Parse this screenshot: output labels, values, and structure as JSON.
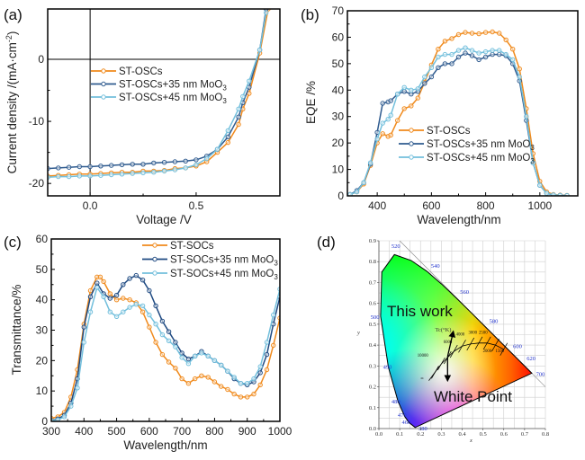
{
  "colors": {
    "orange": "#f08a1c",
    "dark_blue": "#2f5b8f",
    "navy": "#1f4a82",
    "light_blue": "#72bfdc"
  },
  "chart_data": [
    {
      "id": "a",
      "panel_label": "(a)",
      "type": "line",
      "title": "",
      "xlabel": "Voltage /V",
      "ylabel": "Current density /(mA·cm⁻²)",
      "xlim": [
        -0.2,
        0.895
      ],
      "ylim": [
        -22,
        8.1
      ],
      "xticks": [
        0.0,
        0.5
      ],
      "xtick_labels": [
        "0.0",
        "0.5"
      ],
      "yticks": [
        0,
        -10,
        -20
      ],
      "ytick_labels": [
        "0",
        "-10",
        "-20"
      ],
      "zero_lines": true,
      "legend": {
        "position": "center-left"
      },
      "series": [
        {
          "name": "ST-OSCs",
          "name_base": "ST-OSCs",
          "name_sub": "",
          "color_key": "orange",
          "x": [
            -0.2,
            -0.15,
            -0.1,
            -0.05,
            0.0,
            0.05,
            0.1,
            0.15,
            0.2,
            0.25,
            0.3,
            0.35,
            0.4,
            0.45,
            0.5,
            0.55,
            0.6,
            0.65,
            0.7,
            0.72,
            0.75,
            0.8,
            0.84
          ],
          "y": [
            -18.8,
            -18.7,
            -18.6,
            -18.5,
            -18.5,
            -18.4,
            -18.3,
            -18.2,
            -18.2,
            -18.0,
            -18.0,
            -17.9,
            -17.6,
            -17.5,
            -17.2,
            -16.5,
            -15.0,
            -13.4,
            -10.5,
            -8.0,
            -5.5,
            1.0,
            8.1
          ]
        },
        {
          "name": "ST-OSCs+35 nm MoO3",
          "name_base": "ST-OSCs+35 nm MoO",
          "name_sub": "3",
          "color_key": "dark_blue",
          "x": [
            -0.2,
            -0.15,
            -0.1,
            -0.05,
            0.0,
            0.05,
            0.1,
            0.15,
            0.2,
            0.25,
            0.3,
            0.35,
            0.4,
            0.45,
            0.5,
            0.55,
            0.6,
            0.65,
            0.7,
            0.72,
            0.75,
            0.8,
            0.83
          ],
          "y": [
            -17.6,
            -17.5,
            -17.4,
            -17.3,
            -17.3,
            -17.2,
            -17.1,
            -17.0,
            -16.9,
            -16.9,
            -16.7,
            -16.6,
            -16.5,
            -16.4,
            -16.2,
            -15.6,
            -14.5,
            -12.5,
            -9.3,
            -7.0,
            -4.5,
            1.5,
            8.1
          ]
        },
        {
          "name": "ST-OSCs+45 nm MoO3",
          "name_base": "ST-OSCs+45 nm MoO",
          "name_sub": "3",
          "color_key": "light_blue",
          "x": [
            -0.2,
            -0.15,
            -0.1,
            -0.05,
            0.0,
            0.05,
            0.1,
            0.15,
            0.2,
            0.25,
            0.3,
            0.35,
            0.4,
            0.45,
            0.5,
            0.55,
            0.6,
            0.65,
            0.7,
            0.72,
            0.75,
            0.8,
            0.83
          ],
          "y": [
            -19.0,
            -18.9,
            -18.9,
            -18.8,
            -18.8,
            -18.7,
            -18.6,
            -18.5,
            -18.4,
            -18.3,
            -18.2,
            -18.0,
            -17.8,
            -17.5,
            -17.0,
            -16.0,
            -14.5,
            -11.5,
            -8.0,
            -6.0,
            -3.5,
            1.5,
            7.5
          ]
        }
      ]
    },
    {
      "id": "b",
      "panel_label": "(b)",
      "type": "line",
      "title": "",
      "xlabel": "Wavelength/nm",
      "ylabel": "EQE /%",
      "xlim": [
        290,
        1140
      ],
      "ylim": [
        0,
        70
      ],
      "xticks": [
        400,
        600,
        800,
        1000
      ],
      "xtick_labels": [
        "400",
        "600",
        "800",
        "1000"
      ],
      "yticks": [
        0,
        10,
        20,
        30,
        40,
        50,
        60,
        70
      ],
      "ytick_labels": [
        "0",
        "10",
        "20",
        "30",
        "40",
        "50",
        "60",
        "70"
      ],
      "legend": {
        "position": "bottom-center"
      },
      "series": [
        {
          "name": "ST-OSCs",
          "name_base": "ST-OSCs",
          "name_sub": "",
          "color_key": "orange",
          "x": [
            300,
            325,
            350,
            375,
            400,
            420,
            440,
            450,
            475,
            500,
            525,
            550,
            575,
            600,
            625,
            650,
            675,
            700,
            725,
            750,
            775,
            800,
            825,
            850,
            875,
            900,
            925,
            950,
            975,
            1000,
            1025,
            1050,
            1075,
            1100
          ],
          "y": [
            0.5,
            1.5,
            4.5,
            11.5,
            20,
            23.5,
            22.5,
            23,
            28.5,
            33,
            34,
            37,
            43,
            49.5,
            55.5,
            58.5,
            59.5,
            61,
            61.8,
            61.5,
            61.3,
            61.8,
            62,
            61.5,
            59,
            55.5,
            48,
            33,
            16,
            5.5,
            1.5,
            0.5,
            0.3,
            0.2
          ]
        },
        {
          "name": "ST-OSCs+35 nm MoO3",
          "name_base": "ST-OSCs+35 nm MoO",
          "name_sub": "3",
          "color_key": "dark_blue",
          "x": [
            300,
            325,
            350,
            375,
            400,
            420,
            440,
            450,
            475,
            500,
            525,
            550,
            575,
            600,
            625,
            650,
            675,
            700,
            725,
            750,
            775,
            800,
            825,
            850,
            875,
            900,
            925,
            950,
            975,
            1000,
            1025,
            1050,
            1075,
            1100
          ],
          "y": [
            0.5,
            2,
            5,
            12,
            24,
            35,
            35.5,
            36,
            38.5,
            39.5,
            38.5,
            39.5,
            42.5,
            45,
            48.5,
            50,
            50,
            52.5,
            54,
            53,
            51.5,
            52.5,
            53.5,
            53.5,
            53,
            50,
            43.5,
            28.5,
            12.5,
            4,
            1,
            0.3,
            0.2,
            0.1
          ]
        },
        {
          "name": "ST-OSCs+45 nm MoO3",
          "name_base": "ST-OSCs+45 nm MoO",
          "name_sub": "3",
          "color_key": "light_blue",
          "x": [
            300,
            325,
            350,
            375,
            400,
            420,
            440,
            450,
            475,
            500,
            525,
            550,
            575,
            600,
            625,
            650,
            675,
            700,
            725,
            750,
            775,
            800,
            825,
            850,
            875,
            900,
            925,
            950,
            975,
            1000,
            1025,
            1050,
            1075,
            1100
          ],
          "y": [
            0.5,
            1.5,
            5,
            12.5,
            21.5,
            27.5,
            29,
            30.5,
            38.5,
            41,
            40,
            40.5,
            45,
            48.5,
            52.5,
            53.5,
            53.5,
            55,
            56,
            55,
            54,
            54.5,
            55,
            55,
            53.5,
            51.5,
            45,
            30,
            12.5,
            4,
            1,
            0.4,
            0.2,
            0.1
          ]
        }
      ]
    },
    {
      "id": "c",
      "panel_label": "(c)",
      "type": "line",
      "title": "",
      "xlabel": "Wavelength/nm",
      "ylabel": "Transmittance/%",
      "xlim": [
        300,
        1000
      ],
      "ylim": [
        0,
        60
      ],
      "xticks": [
        300,
        400,
        500,
        600,
        700,
        800,
        900,
        1000
      ],
      "xtick_labels": [
        "300",
        "400",
        "500",
        "600",
        "700",
        "800",
        "900",
        "1000"
      ],
      "yticks": [
        0,
        10,
        20,
        30,
        40,
        50,
        60
      ],
      "ytick_labels": [
        "0",
        "10",
        "20",
        "30",
        "40",
        "50",
        "60"
      ],
      "legend": {
        "position": "top-right"
      },
      "series": [
        {
          "name": "ST-SOCs",
          "name_base": "ST-SOCs",
          "name_sub": "",
          "color_key": "orange",
          "x": [
            300,
            320,
            340,
            360,
            380,
            400,
            420,
            440,
            450,
            460,
            480,
            500,
            520,
            540,
            560,
            580,
            600,
            620,
            640,
            660,
            680,
            700,
            720,
            740,
            760,
            780,
            800,
            820,
            840,
            860,
            880,
            900,
            920,
            940,
            960,
            980,
            1000
          ],
          "y": [
            1,
            1.5,
            3,
            8,
            17,
            32,
            43,
            47.5,
            47.5,
            46,
            42,
            40,
            40.5,
            40,
            39,
            36,
            31,
            26,
            22,
            19.5,
            17.5,
            14,
            12.5,
            14,
            15,
            14.5,
            13,
            11.5,
            10.5,
            9,
            8,
            8,
            9,
            12,
            17,
            25,
            34
          ]
        },
        {
          "name": "ST-SOCs+35 nm MoO3",
          "name_base": "ST-SOCs+35 nm MoO",
          "name_sub": "3",
          "color_key": "navy",
          "x": [
            300,
            320,
            340,
            360,
            380,
            400,
            420,
            440,
            460,
            480,
            500,
            520,
            540,
            560,
            580,
            600,
            620,
            640,
            660,
            680,
            700,
            720,
            740,
            760,
            780,
            800,
            820,
            840,
            860,
            880,
            900,
            920,
            940,
            960,
            980,
            1000
          ],
          "y": [
            0.3,
            0.8,
            2,
            6,
            14,
            31,
            41,
            45.5,
            42,
            40.5,
            41.5,
            45,
            47,
            48,
            46.5,
            43,
            38,
            33,
            29.5,
            26,
            22.5,
            20.5,
            21.5,
            23,
            21.5,
            20,
            18.5,
            16.5,
            14,
            12.5,
            12,
            13,
            16,
            22,
            32,
            41
          ]
        },
        {
          "name": "ST-SOCs+45 nm MoO3",
          "name_base": "ST-SOCs+45 nm MoO",
          "name_sub": "3",
          "color_key": "light_blue",
          "x": [
            300,
            320,
            340,
            360,
            380,
            400,
            420,
            440,
            460,
            480,
            500,
            520,
            540,
            560,
            580,
            600,
            620,
            640,
            660,
            680,
            700,
            720,
            740,
            760,
            780,
            800,
            820,
            840,
            860,
            880,
            900,
            920,
            940,
            960,
            980,
            1000
          ],
          "y": [
            0.2,
            0.5,
            1.5,
            5,
            11,
            26,
            36,
            44,
            41,
            36,
            34.5,
            36,
            37.5,
            38.5,
            38,
            35,
            32,
            28.5,
            26.5,
            24.5,
            21,
            19,
            21.5,
            22.5,
            21.5,
            20,
            18.5,
            16.5,
            14.5,
            12.5,
            12.5,
            14,
            18,
            26,
            35,
            43.5
          ]
        }
      ]
    },
    {
      "id": "d",
      "panel_label": "(d)",
      "type": "scatter",
      "title": "",
      "xlabel": "x",
      "ylabel": "y",
      "xlim": [
        0.0,
        0.8
      ],
      "ylim": [
        0.0,
        0.9
      ],
      "xticks": [
        0.0,
        0.1,
        0.2,
        0.3,
        0.4,
        0.5,
        0.6,
        0.7,
        0.8
      ],
      "xtick_labels": [
        "0.0",
        "0.1",
        "0.2",
        "0.3",
        "0.4",
        "0.5",
        "0.6",
        "0.7",
        "0.8"
      ],
      "yticks": [
        0.0,
        0.1,
        0.2,
        0.3,
        0.4,
        0.5,
        0.6,
        0.7,
        0.8,
        0.9
      ],
      "ytick_labels": [
        "0.0",
        "0.1",
        "0.2",
        "0.3",
        "0.4",
        "0.5",
        "0.6",
        "0.7",
        "0.8",
        "0.9"
      ],
      "grid": true,
      "spectral_locus": {
        "wavelengths": [
          380,
          460,
          470,
          480,
          490,
          500,
          510,
          520,
          530,
          540,
          550,
          560,
          570,
          580,
          590,
          600,
          620,
          700
        ],
        "x": [
          0.1741,
          0.144,
          0.1241,
          0.0913,
          0.0454,
          0.0082,
          0.0139,
          0.0743,
          0.1547,
          0.2296,
          0.3016,
          0.3731,
          0.4441,
          0.5125,
          0.5752,
          0.627,
          0.6915,
          0.7347
        ],
        "y": [
          0.005,
          0.0297,
          0.0578,
          0.1327,
          0.295,
          0.5384,
          0.7502,
          0.8338,
          0.8059,
          0.7543,
          0.6923,
          0.6245,
          0.5547,
          0.4866,
          0.4242,
          0.3725,
          0.3083,
          0.2653
        ]
      },
      "wavelength_labels": [
        {
          "text": "380",
          "x": 0.19,
          "y": 0.0
        },
        {
          "text": "460",
          "x": 0.11,
          "y": 0.03
        },
        {
          "text": "470",
          "x": 0.09,
          "y": 0.065
        },
        {
          "text": "480",
          "x": 0.06,
          "y": 0.13
        },
        {
          "text": "490",
          "x": 0.02,
          "y": 0.295
        },
        {
          "text": "500",
          "x": -0.04,
          "y": 0.535
        },
        {
          "text": "520",
          "x": 0.06,
          "y": 0.875
        },
        {
          "text": "540",
          "x": 0.25,
          "y": 0.78
        },
        {
          "text": "560",
          "x": 0.39,
          "y": 0.655
        },
        {
          "text": "580",
          "x": 0.53,
          "y": 0.515
        },
        {
          "text": "600",
          "x": 0.645,
          "y": 0.395
        },
        {
          "text": "620",
          "x": 0.71,
          "y": 0.335
        },
        {
          "text": "700",
          "x": 0.755,
          "y": 0.26
        }
      ],
      "planckian_locus": {
        "x": [
          0.24,
          0.27,
          0.3,
          0.33,
          0.36,
          0.4,
          0.44,
          0.48,
          0.52,
          0.56,
          0.6
        ],
        "y": [
          0.23,
          0.27,
          0.31,
          0.34,
          0.37,
          0.395,
          0.405,
          0.41,
          0.41,
          0.4,
          0.38
        ]
      },
      "cct_labels": [
        {
          "text": "∞",
          "x": 0.2,
          "y": 0.235
        },
        {
          "text": "10000",
          "x": 0.185,
          "y": 0.345
        },
        {
          "text": "6000",
          "x": 0.31,
          "y": 0.41
        },
        {
          "text": "4000",
          "x": 0.37,
          "y": 0.445
        },
        {
          "text": "3000",
          "x": 0.43,
          "y": 0.455
        },
        {
          "text": "2500",
          "x": 0.48,
          "y": 0.455
        },
        {
          "text": "2000",
          "x": 0.5,
          "y": 0.365
        },
        {
          "text": "1500",
          "x": 0.56,
          "y": 0.365
        }
      ],
      "tc_label": "Tc(°K)",
      "white_point": {
        "x": 0.33,
        "y": 0.24
      },
      "arrow_start": {
        "x": 0.33,
        "y": 0.345
      },
      "arrow_up_end": {
        "x": 0.355,
        "y": 0.455
      },
      "annotations": [
        "This work",
        "White Point"
      ]
    }
  ]
}
